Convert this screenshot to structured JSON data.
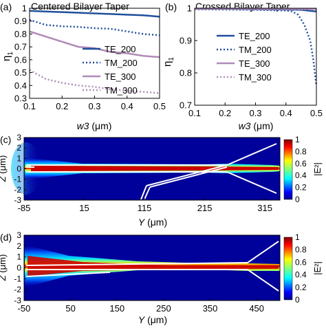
{
  "chart_data": [
    {
      "type": "line",
      "panel_label": "(a)",
      "title": "Centered Bilayer Taper",
      "xlabel_var": "w3",
      "xlabel_unit": "(μm)",
      "ylabel_main": "η",
      "ylabel_sub": "1",
      "xlim": [
        0.1,
        0.5
      ],
      "ylim": [
        0.3,
        1.0
      ],
      "xticks": [
        "0.1",
        "0.2",
        "0.3",
        "0.4",
        "0.5"
      ],
      "yticks": [
        "0.3",
        "0.4",
        "0.5",
        "0.6",
        "0.7",
        "0.8",
        "0.9",
        "1"
      ],
      "legend_position": "right",
      "series": [
        {
          "name": "TE_200",
          "color": "#1f4e9c",
          "style": "solid",
          "x": [
            0.1,
            0.15,
            0.2,
            0.25,
            0.3,
            0.35,
            0.4,
            0.45,
            0.5
          ],
          "y": [
            0.98,
            0.975,
            0.97,
            0.965,
            0.96,
            0.955,
            0.95,
            0.945,
            0.935
          ]
        },
        {
          "name": "TM_200",
          "color": "#1f4e9c",
          "style": "dotted",
          "x": [
            0.1,
            0.15,
            0.2,
            0.25,
            0.3,
            0.35,
            0.4,
            0.45,
            0.5
          ],
          "y": [
            0.91,
            0.87,
            0.86,
            0.855,
            0.845,
            0.84,
            0.82,
            0.8,
            0.79
          ]
        },
        {
          "name": "TE_300",
          "color": "#b089b8",
          "style": "solid",
          "x": [
            0.1,
            0.15,
            0.2,
            0.25,
            0.3,
            0.35,
            0.4,
            0.45,
            0.5
          ],
          "y": [
            0.82,
            0.78,
            0.74,
            0.7,
            0.69,
            0.66,
            0.65,
            0.63,
            0.62
          ]
        },
        {
          "name": "TM_300",
          "color": "#b089b8",
          "style": "dotted",
          "x": [
            0.1,
            0.15,
            0.2,
            0.25,
            0.3,
            0.35,
            0.4,
            0.45,
            0.5
          ],
          "y": [
            0.52,
            0.45,
            0.42,
            0.4,
            0.39,
            0.37,
            0.36,
            0.35,
            0.34
          ]
        }
      ]
    },
    {
      "type": "line",
      "panel_label": "(b)",
      "title": "Crossed Bilayer Taper",
      "xlabel_var": "w3",
      "xlabel_unit": "(μm)",
      "ylabel_main": "η",
      "ylabel_sub": "1",
      "xlim": [
        0.1,
        0.5
      ],
      "ylim": [
        0.7,
        1.0
      ],
      "xticks": [
        "0.1",
        "0.2",
        "0.3",
        "0.4",
        "0.5"
      ],
      "yticks": [
        "0.7",
        "0.8",
        "0.9",
        "1"
      ],
      "legend_position": "right",
      "series": [
        {
          "name": "TE_200",
          "color": "#1f4e9c",
          "style": "solid",
          "x": [
            0.1,
            0.2,
            0.3,
            0.4,
            0.45,
            0.5
          ],
          "y": [
            0.998,
            0.998,
            0.997,
            0.996,
            0.995,
            0.99
          ]
        },
        {
          "name": "TM_200",
          "color": "#1f4e9c",
          "style": "dotted",
          "x": [
            0.1,
            0.2,
            0.3,
            0.4,
            0.42,
            0.44,
            0.46,
            0.48,
            0.49,
            0.5
          ],
          "y": [
            0.997,
            0.996,
            0.995,
            0.993,
            0.99,
            0.98,
            0.95,
            0.9,
            0.84,
            0.76
          ]
        },
        {
          "name": "TE_300",
          "color": "#b089b8",
          "style": "solid",
          "x": [
            0.1,
            0.2,
            0.3,
            0.4,
            0.5
          ],
          "y": [
            0.999,
            0.999,
            0.999,
            0.998,
            0.998
          ]
        },
        {
          "name": "TM_300",
          "color": "#b089b8",
          "style": "dotted",
          "x": [
            0.1,
            0.2,
            0.3,
            0.4,
            0.5
          ],
          "y": [
            0.998,
            0.998,
            0.997,
            0.997,
            0.996
          ]
        }
      ]
    },
    {
      "type": "heatmap",
      "panel_label": "(c)",
      "xlabel_var": "Y",
      "xlabel_unit": "(μm)",
      "ylabel_var": "Z",
      "ylabel_unit": "(μm)",
      "xlim": [
        -85,
        340
      ],
      "ylim": [
        -3,
        3
      ],
      "xticks": [
        -85,
        15,
        115,
        215,
        315
      ],
      "yticks": [
        3,
        2,
        1,
        0,
        -1,
        -2,
        -3
      ],
      "colorbar_label": "|E²|",
      "colorbar_ticks": [
        "0",
        "0.2",
        "0.4",
        "0.6",
        "0.8",
        "1"
      ],
      "colormap": "jet"
    },
    {
      "type": "heatmap",
      "panel_label": "(d)",
      "xlabel_var": "Y",
      "xlabel_unit": "(μm)",
      "ylabel_var": "Z",
      "ylabel_unit": "(μm)",
      "xlim": [
        -50,
        500
      ],
      "ylim": [
        -3,
        3
      ],
      "xticks": [
        -50,
        50,
        150,
        250,
        350,
        450
      ],
      "yticks": [
        3,
        2,
        1,
        0,
        -1,
        -2,
        -3
      ],
      "colorbar_label": "|E²|",
      "colorbar_ticks": [
        "0",
        "0.2",
        "0.4",
        "0.6",
        "0.8",
        "1"
      ],
      "colormap": "jet"
    }
  ]
}
